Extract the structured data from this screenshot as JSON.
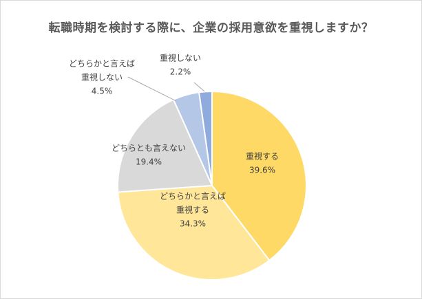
{
  "chart_data": {
    "type": "pie",
    "title": "転職時期を検討する際に、企業の採用意欲を重視しますか？",
    "slices": [
      {
        "label_lines": [
          "重視する"
        ],
        "value": 39.6,
        "value_label": "39.6%",
        "color": "#FFD966"
      },
      {
        "label_lines": [
          "どちらかと言えば",
          "重視する"
        ],
        "value": 34.3,
        "value_label": "34.3%",
        "color": "#FFE699"
      },
      {
        "label_lines": [
          "どちらとも言えない"
        ],
        "value": 19.4,
        "value_label": "19.4%",
        "color": "#D9D9D9"
      },
      {
        "label_lines": [
          "どちらかと言えば",
          "重視しない"
        ],
        "value": 4.5,
        "value_label": "4.5%",
        "color": "#B4C7E7"
      },
      {
        "label_lines": [
          "重視しない"
        ],
        "value": 2.2,
        "value_label": "2.2%",
        "color": "#8FAADC"
      }
    ],
    "start_angle_deg": 0,
    "direction": "clockwise",
    "legend": "none"
  }
}
